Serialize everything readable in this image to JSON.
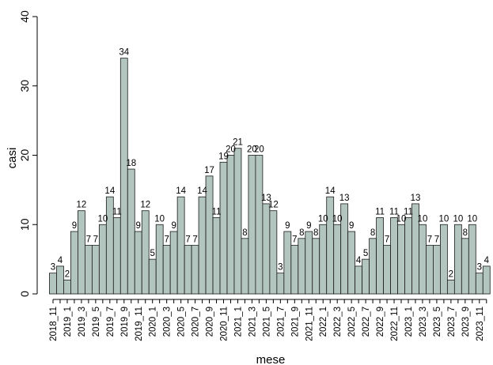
{
  "chart_data": {
    "type": "bar",
    "title": "",
    "xlabel": "mese",
    "ylabel": "casi",
    "ylim": [
      0,
      40
    ],
    "yticks": [
      0,
      10,
      20,
      30,
      40
    ],
    "grid": false,
    "bar_color": "#b2c5bf",
    "categories": [
      "2018_11",
      "2018_12",
      "2019_1",
      "2019_2",
      "2019_3",
      "2019_4",
      "2019_5",
      "2019_6",
      "2019_7",
      "2019_8",
      "2019_9",
      "2019_10",
      "2019_11",
      "2019_12",
      "2020_1",
      "2020_2",
      "2020_3",
      "2020_4",
      "2020_5",
      "2020_6",
      "2020_7",
      "2020_8",
      "2020_9",
      "2020_10",
      "2020_11",
      "2020_12",
      "2021_1",
      "2021_2",
      "2021_3",
      "2021_4",
      "2021_5",
      "2021_6",
      "2021_7",
      "2021_8",
      "2021_9",
      "2021_10",
      "2021_11",
      "2021_12",
      "2022_1",
      "2022_2",
      "2022_3",
      "2022_4",
      "2022_5",
      "2022_6",
      "2022_7",
      "2022_8",
      "2022_9",
      "2022_10",
      "2022_11",
      "2022_12",
      "2023_1",
      "2023_2",
      "2023_3",
      "2023_4",
      "2023_5",
      "2023_6",
      "2023_7",
      "2023_8",
      "2023_9",
      "2023_10",
      "2023_11",
      "2023_12"
    ],
    "values": [
      3,
      4,
      2,
      9,
      12,
      7,
      7,
      10,
      14,
      11,
      34,
      18,
      9,
      12,
      5,
      10,
      7,
      9,
      14,
      7,
      7,
      14,
      17,
      11,
      19,
      20,
      21,
      8,
      20,
      20,
      13,
      12,
      3,
      9,
      7,
      8,
      9,
      8,
      10,
      14,
      10,
      13,
      9,
      4,
      5,
      8,
      11,
      7,
      11,
      10,
      11,
      13,
      10,
      7,
      7,
      10,
      2,
      10,
      8,
      10,
      3,
      4
    ],
    "xtick_labels": [
      "2018_11",
      "2019_1",
      "2019_3",
      "2019_5",
      "2019_7",
      "2019_9",
      "2019_11",
      "2020_1",
      "2020_3",
      "2020_5",
      "2020_7",
      "2020_9",
      "2020_11",
      "2021_1",
      "2021_3",
      "2021_5",
      "2021_7",
      "2021_9",
      "2021_11",
      "2022_1",
      "2022_3",
      "2022_5",
      "2022_7",
      "2022_9",
      "2022_11",
      "2023_1",
      "2023_3",
      "2023_5",
      "2023_7",
      "2023_9",
      "2023_11"
    ]
  }
}
